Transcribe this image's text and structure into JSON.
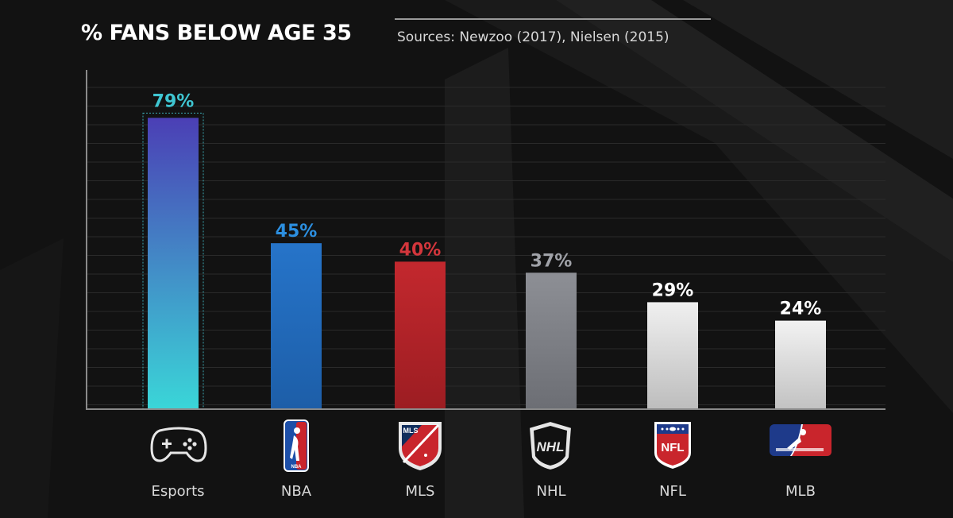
{
  "chart_data": {
    "type": "bar",
    "title": "% FANS BELOW AGE 35",
    "source": "Sources: Newzoo (2017), Nielsen (2015)",
    "categories": [
      "Esports",
      "NBA",
      "MLS",
      "NHL",
      "NFL",
      "MLB"
    ],
    "values": [
      79,
      45,
      40,
      37,
      29,
      24
    ],
    "value_labels": [
      "79%",
      "45%",
      "40%",
      "37%",
      "29%",
      "24%"
    ],
    "unit": "%",
    "ylim": [
      0,
      92
    ],
    "grid": true,
    "bar_colors": [
      {
        "top": "#4b3fb5",
        "bottom": "#3ad6d8",
        "label": "#3fc6d2"
      },
      {
        "top": "#2674c9",
        "bottom": "#1d5ea8",
        "label": "#2c8fe0"
      },
      {
        "top": "#c3282e",
        "bottom": "#9c1d22",
        "label": "#d4363c"
      },
      {
        "top": "#8d8f95",
        "bottom": "#6c6e74",
        "label": "#a0a2a8"
      },
      {
        "top": "#f0f0f0",
        "bottom": "#bdbdbd",
        "label": "#ffffff"
      },
      {
        "top": "#f2f2f2",
        "bottom": "#c2c2c2",
        "label": "#ffffff"
      }
    ],
    "icons": [
      "gamepad-icon",
      "nba-logo-icon",
      "mls-logo-icon",
      "nhl-logo-icon",
      "nfl-logo-icon",
      "mlb-logo-icon"
    ]
  },
  "logos": {
    "nba": "NBA",
    "mls": "MLS",
    "nhl": "NHL",
    "nfl": "NFL"
  },
  "colors": {
    "background": "#121212",
    "grid": "#2a2a2a",
    "axis": "#8a8a8a"
  }
}
